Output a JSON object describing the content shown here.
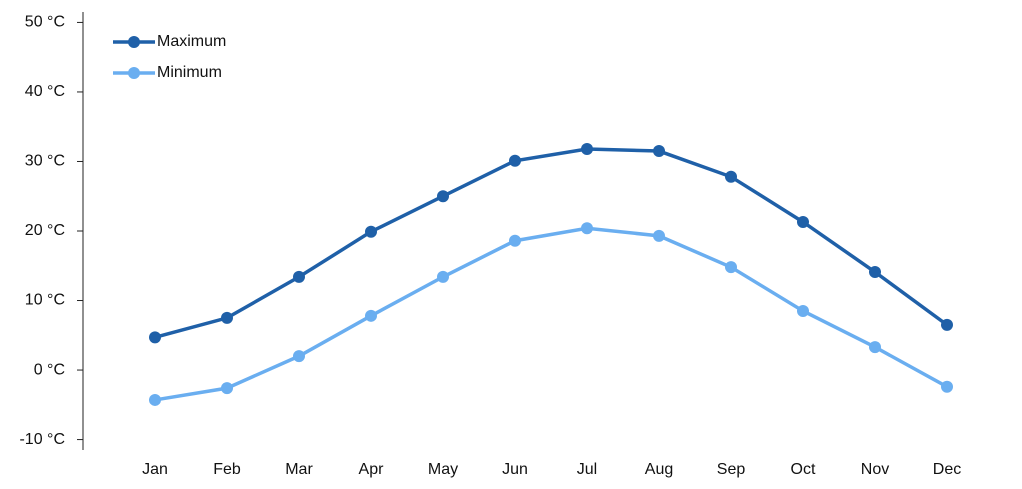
{
  "chart_data": {
    "type": "line",
    "categories": [
      "Jan",
      "Feb",
      "Mar",
      "Apr",
      "May",
      "Jun",
      "Jul",
      "Aug",
      "Sep",
      "Oct",
      "Nov",
      "Dec"
    ],
    "series": [
      {
        "name": "Maximum",
        "color": "#1f60a8",
        "values": [
          4.7,
          7.5,
          13.4,
          19.9,
          25.0,
          30.1,
          31.8,
          31.5,
          27.8,
          21.3,
          14.1,
          6.5
        ]
      },
      {
        "name": "Minimum",
        "color": "#6aaef0",
        "values": [
          -4.3,
          -2.6,
          2.0,
          7.8,
          13.4,
          18.6,
          20.4,
          19.3,
          14.8,
          8.5,
          3.3,
          -2.4
        ]
      }
    ],
    "ylim": [
      -11.5,
      51.5
    ],
    "yticks": [
      {
        "value": -10,
        "label": "-10 °C"
      },
      {
        "value": 0,
        "label": "0 °C"
      },
      {
        "value": 10,
        "label": "10 °C"
      },
      {
        "value": 20,
        "label": "20 °C"
      },
      {
        "value": 30,
        "label": "30 °C"
      },
      {
        "value": 40,
        "label": "40 °C"
      },
      {
        "value": 50,
        "label": "50 °C"
      }
    ],
    "legend": "top-left"
  }
}
